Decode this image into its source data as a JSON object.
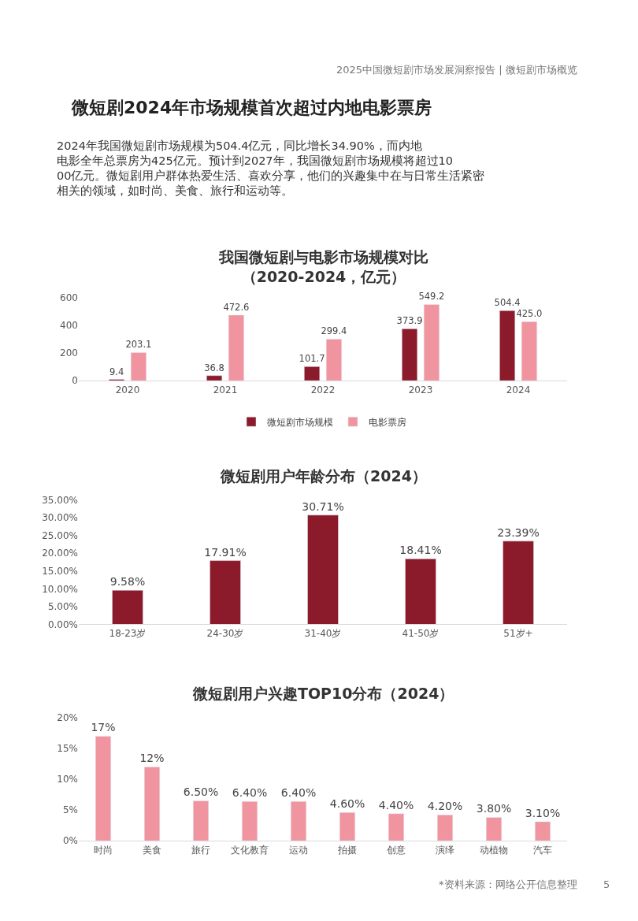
{
  "chart_data": [
    {
      "type": "other",
      "title": "微短剧2024年市场规模首次超过内地电影票房",
      "subtitle": "2024年我国微短剧市场规模为504.4亿元，同比增长34.90%，而内地电影全年总票房为425亿元。预计到2027年，我国微短剧市场规模将超过1000亿元。微短剧用户群体热爱生活、喜欢分享，他们的兴趣集中在与日常生活紧密相关的领域，如时尚、美食、旅行和运动等。",
      "annotations": [
        "2025中国微短剧市场发展洞察报告 | 微短剧市场概览"
      ]
    },
    {
      "type": "bar",
      "title": "我国微短剧与电影市场规模对比（2020-2024，亿元）",
      "categories": [
        "2020",
        "2021",
        "2022",
        "2023",
        "2024"
      ],
      "series": [
        {
          "name": "微短剧市场规模",
          "color": "#8b1a2b",
          "values": [
            9.4,
            36.8,
            101.7,
            373.9,
            504.4
          ],
          "value_labels": [
            "9.4",
            "36.8",
            "101.7",
            "373.9",
            "504.4"
          ]
        },
        {
          "name": "电影票房",
          "color": "#f0959f",
          "values": [
            203.1,
            472.6,
            299.4,
            549.2,
            425.0
          ],
          "value_labels": [
            "203.1",
            "472.6",
            "299.4",
            "549.2",
            "425.0"
          ]
        }
      ],
      "ylim": [
        0,
        600
      ],
      "yticks": [
        0,
        200,
        400,
        600
      ],
      "legend": "bottom"
    },
    {
      "type": "bar",
      "title": "微短剧用户年龄分布（2024）",
      "categories": [
        "18-23岁",
        "24-30岁",
        "31-40岁",
        "41-50岁",
        "51岁+"
      ],
      "series": [
        {
          "color": "#8b1a2b",
          "values": [
            9.58,
            17.91,
            30.71,
            18.41,
            23.39
          ],
          "value_labels": [
            "9.58%",
            "17.91%",
            "30.71%",
            "18.41%",
            "23.39%"
          ]
        }
      ],
      "ylim": [
        0,
        35
      ],
      "yticks": [
        {
          "value": 0,
          "label": "0.00%"
        },
        {
          "value": 5,
          "label": "5.00%"
        },
        {
          "value": 10,
          "label": "10.00%"
        },
        {
          "value": 15,
          "label": "15.00%"
        },
        {
          "value": 20,
          "label": "20.00%"
        },
        {
          "value": 25,
          "label": "25.00%"
        },
        {
          "value": 30,
          "label": "30.00%"
        },
        {
          "value": 35,
          "label": "35.00%"
        }
      ]
    },
    {
      "type": "bar",
      "title": "微短剧用户兴趣TOP10分布（2024）",
      "categories": [
        "时尚",
        "美食",
        "旅行",
        "文化教育",
        "运动",
        "拍摄",
        "创意",
        "演绎",
        "动植物",
        "汽车"
      ],
      "series": [
        {
          "color": "#f0959f",
          "values": [
            17,
            12,
            6.5,
            6.4,
            6.4,
            4.6,
            4.4,
            4.2,
            3.8,
            3.1
          ],
          "value_labels": [
            "17%",
            "12%",
            "6.50%",
            "6.40%",
            "6.40%",
            "4.60%",
            "4.40%",
            "4.20%",
            "3.80%",
            "3.10%"
          ]
        }
      ],
      "ylim": [
        0,
        20
      ],
      "yticks": [
        {
          "value": 0,
          "label": "0%"
        },
        {
          "value": 5,
          "label": "5%"
        },
        {
          "value": 10,
          "label": "10%"
        },
        {
          "value": 15,
          "label": "15%"
        },
        {
          "value": 20,
          "label": "20%"
        }
      ],
      "annotations": [
        "*资料来源：网络公开信息整理",
        "5"
      ]
    }
  ]
}
